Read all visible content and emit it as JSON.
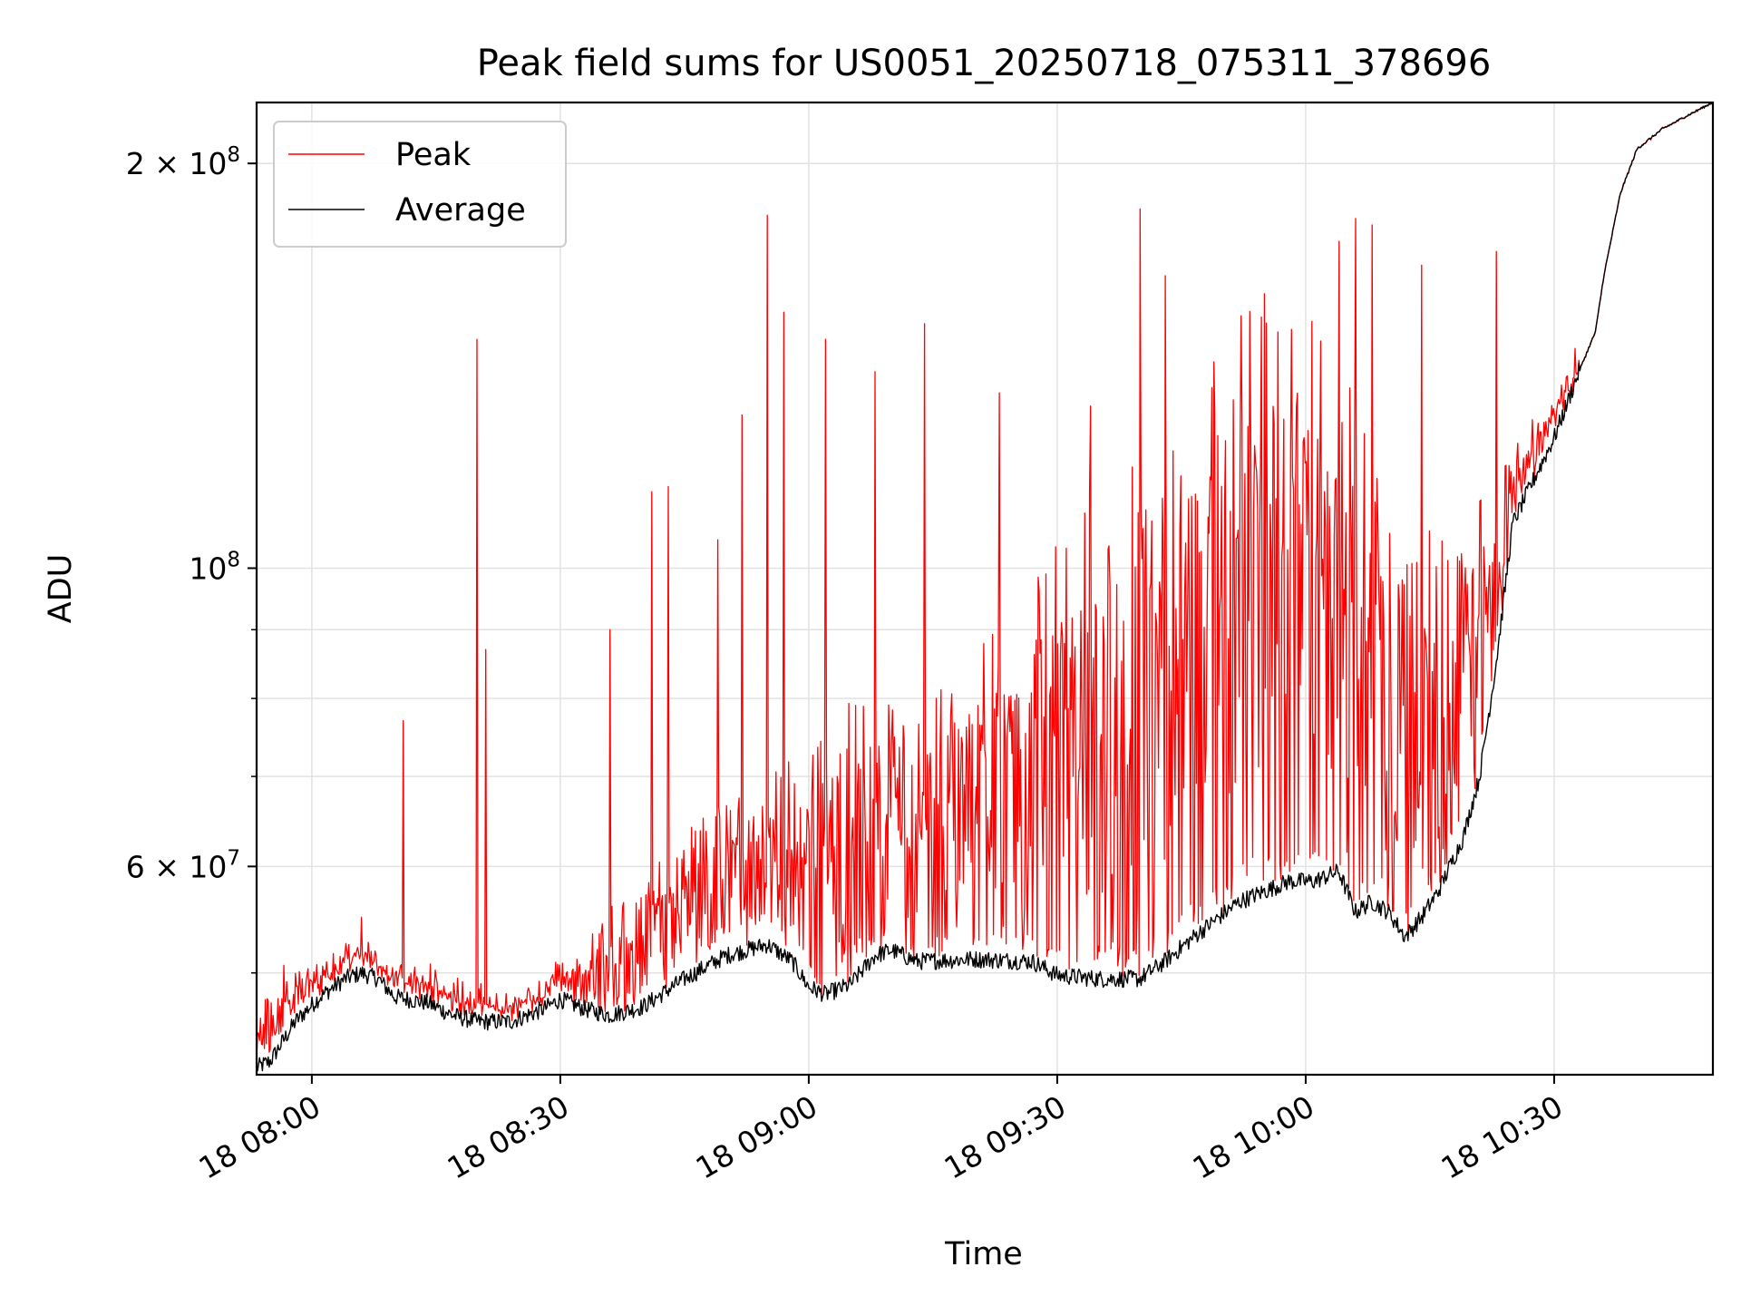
{
  "chart_data": {
    "type": "line",
    "title": "Peak field sums for US0051_20250718_075311_378696",
    "xlabel": "Time",
    "ylabel": "ADU",
    "yscale": "log",
    "ylim": [
      42000000,
      222000000
    ],
    "xlim": [
      "2025-07-18 07:53:20",
      "2025-07-18 10:49:10"
    ],
    "x_ticks": [
      {
        "t": "2025-07-18 08:00",
        "label": "18 08:00"
      },
      {
        "t": "2025-07-18 08:30",
        "label": "18 08:30"
      },
      {
        "t": "2025-07-18 09:00",
        "label": "18 09:00"
      },
      {
        "t": "2025-07-18 09:30",
        "label": "18 09:30"
      },
      {
        "t": "2025-07-18 10:00",
        "label": "18 10:00"
      },
      {
        "t": "2025-07-18 10:30",
        "label": "18 10:30"
      }
    ],
    "y_major_ticks": [
      {
        "value": 60000000,
        "mantissa": "6",
        "exponent": "7"
      },
      {
        "value": 100000000,
        "mantissa": "",
        "exponent": "8"
      },
      {
        "value": 200000000,
        "mantissa": "2",
        "exponent": "8"
      }
    ],
    "y_minor_ticks": [
      50000000,
      70000000,
      80000000,
      90000000
    ],
    "grid": true,
    "legend": {
      "position": "upper-left"
    },
    "series": [
      {
        "name": "Peak",
        "color": "#ff0000",
        "style": "noisy-spikes",
        "baseline_ref": "Average",
        "points": [
          [
            "2025-07-18 07:53:20",
            43000000
          ],
          [
            "2025-07-18 07:54",
            47000000
          ],
          [
            "2025-07-18 07:55",
            46000000
          ],
          [
            "2025-07-18 07:57",
            48000000
          ],
          [
            "2025-07-18 08:00",
            49000000
          ],
          [
            "2025-07-18 08:03",
            50500000
          ],
          [
            "2025-07-18 08:06",
            51500000
          ],
          [
            "2025-07-18 08:09",
            50000000
          ],
          [
            "2025-07-18 08:12",
            49000000
          ],
          [
            "2025-07-18 08:15",
            48500000
          ],
          [
            "2025-07-18 08:18",
            47500000
          ],
          [
            "2025-07-18 08:21",
            47000000
          ],
          [
            "2025-07-18 08:25",
            47000000
          ],
          [
            "2025-07-18 08:28",
            48000000
          ],
          [
            "2025-07-18 08:30",
            49500000
          ],
          [
            "2025-07-18 08:33",
            50000000
          ],
          [
            "2025-07-18 08:36",
            51000000
          ],
          [
            "2025-07-18 08:40",
            53000000
          ],
          [
            "2025-07-18 08:45",
            56000000
          ],
          [
            "2025-07-18 08:50",
            59000000
          ],
          [
            "2025-07-18 08:55",
            61000000
          ],
          [
            "2025-07-18 09:00",
            62000000
          ],
          [
            "2025-07-18 09:05",
            64000000
          ],
          [
            "2025-07-18 09:10",
            65000000
          ],
          [
            "2025-07-18 09:15",
            66000000
          ],
          [
            "2025-07-18 09:20",
            68000000
          ],
          [
            "2025-07-18 09:25",
            72000000
          ],
          [
            "2025-07-18 09:30",
            78000000
          ],
          [
            "2025-07-18 09:35",
            82000000
          ],
          [
            "2025-07-18 09:40",
            85000000
          ],
          [
            "2025-07-18 09:45",
            88000000
          ],
          [
            "2025-07-18 09:50",
            100000000
          ],
          [
            "2025-07-18 09:55",
            108000000
          ],
          [
            "2025-07-18 10:00",
            105000000
          ],
          [
            "2025-07-18 10:05",
            98000000
          ],
          [
            "2025-07-18 10:10",
            85000000
          ],
          [
            "2025-07-18 10:15",
            80000000
          ],
          [
            "2025-07-18 10:20",
            85000000
          ],
          [
            "2025-07-18 10:25",
            115000000
          ],
          [
            "2025-07-18 10:30",
            130000000
          ],
          [
            "2025-07-18 10:33",
            140000000
          ]
        ],
        "spikes": [
          [
            "2025-07-18 08:06",
            55000000
          ],
          [
            "2025-07-18 08:11",
            77000000
          ],
          [
            "2025-07-18 08:20",
            148000000
          ],
          [
            "2025-07-18 08:21",
            87000000
          ],
          [
            "2025-07-18 08:36",
            90000000
          ],
          [
            "2025-07-18 08:41",
            114000000
          ],
          [
            "2025-07-18 08:43",
            115000000
          ],
          [
            "2025-07-18 08:49",
            105000000
          ],
          [
            "2025-07-18 08:52",
            130000000
          ],
          [
            "2025-07-18 08:55",
            183000000
          ],
          [
            "2025-07-18 08:57",
            155000000
          ],
          [
            "2025-07-18 09:02",
            148000000
          ],
          [
            "2025-07-18 09:08",
            140000000
          ],
          [
            "2025-07-18 09:14",
            152000000
          ],
          [
            "2025-07-18 09:23",
            135000000
          ],
          [
            "2025-07-18 09:34",
            132000000
          ],
          [
            "2025-07-18 09:40",
            185000000
          ],
          [
            "2025-07-18 09:43",
            165000000
          ],
          [
            "2025-07-18 09:55",
            160000000
          ],
          [
            "2025-07-18 10:04",
            175000000
          ],
          [
            "2025-07-18 10:06",
            182000000
          ],
          [
            "2025-07-18 10:08",
            180000000
          ],
          [
            "2025-07-18 10:14",
            168000000
          ],
          [
            "2025-07-18 10:23",
            172000000
          ]
        ]
      },
      {
        "name": "Average",
        "color": "#000000",
        "style": "jitter",
        "points": [
          [
            "2025-07-18 07:53:20",
            42500000
          ],
          [
            "2025-07-18 07:55",
            43000000
          ],
          [
            "2025-07-18 07:58",
            46000000
          ],
          [
            "2025-07-18 08:01",
            48000000
          ],
          [
            "2025-07-18 08:04",
            49500000
          ],
          [
            "2025-07-18 08:06",
            50000000
          ],
          [
            "2025-07-18 08:08",
            49500000
          ],
          [
            "2025-07-18 08:10",
            48000000
          ],
          [
            "2025-07-18 08:14",
            47500000
          ],
          [
            "2025-07-18 08:17",
            46500000
          ],
          [
            "2025-07-18 08:20",
            46000000
          ],
          [
            "2025-07-18 08:24",
            46000000
          ],
          [
            "2025-07-18 08:28",
            47000000
          ],
          [
            "2025-07-18 08:30",
            47800000
          ],
          [
            "2025-07-18 08:33",
            47000000
          ],
          [
            "2025-07-18 08:36",
            46500000
          ],
          [
            "2025-07-18 08:40",
            47200000
          ],
          [
            "2025-07-18 08:45",
            49500000
          ],
          [
            "2025-07-18 08:50",
            51500000
          ],
          [
            "2025-07-18 08:55",
            52500000
          ],
          [
            "2025-07-18 08:58",
            51000000
          ],
          [
            "2025-07-18 09:00",
            48800000
          ],
          [
            "2025-07-18 09:02",
            48200000
          ],
          [
            "2025-07-18 09:05",
            49000000
          ],
          [
            "2025-07-18 09:08",
            51500000
          ],
          [
            "2025-07-18 09:10",
            52000000
          ],
          [
            "2025-07-18 09:13",
            51000000
          ],
          [
            "2025-07-18 09:20",
            51200000
          ],
          [
            "2025-07-18 09:27",
            51000000
          ],
          [
            "2025-07-18 09:30",
            49800000
          ],
          [
            "2025-07-18 09:35",
            49500000
          ],
          [
            "2025-07-18 09:40",
            49500000
          ],
          [
            "2025-07-18 09:43",
            51000000
          ],
          [
            "2025-07-18 09:47",
            53500000
          ],
          [
            "2025-07-18 09:52",
            56500000
          ],
          [
            "2025-07-18 09:55",
            57500000
          ],
          [
            "2025-07-18 09:58",
            58500000
          ],
          [
            "2025-07-18 10:01",
            58500000
          ],
          [
            "2025-07-18 10:04",
            59500000
          ],
          [
            "2025-07-18 10:06",
            55500000
          ],
          [
            "2025-07-18 10:08",
            56500000
          ],
          [
            "2025-07-18 10:10",
            55500000
          ],
          [
            "2025-07-18 10:12",
            53200000
          ],
          [
            "2025-07-18 10:14",
            55000000
          ],
          [
            "2025-07-18 10:16",
            57500000
          ],
          [
            "2025-07-18 10:19",
            63000000
          ],
          [
            "2025-07-18 10:21",
            70000000
          ],
          [
            "2025-07-18 10:23",
            85000000
          ],
          [
            "2025-07-18 10:25",
            108000000
          ],
          [
            "2025-07-18 10:28",
            118000000
          ],
          [
            "2025-07-18 10:30",
            125000000
          ],
          [
            "2025-07-18 10:33",
            140000000
          ],
          [
            "2025-07-18 10:35",
            150000000
          ],
          [
            "2025-07-18 10:36",
            165000000
          ],
          [
            "2025-07-18 10:38",
            190000000
          ],
          [
            "2025-07-18 10:40",
            205000000
          ],
          [
            "2025-07-18 10:43",
            212000000
          ],
          [
            "2025-07-18 10:46",
            217000000
          ],
          [
            "2025-07-18 10:49:10",
            222000000
          ]
        ]
      }
    ]
  }
}
